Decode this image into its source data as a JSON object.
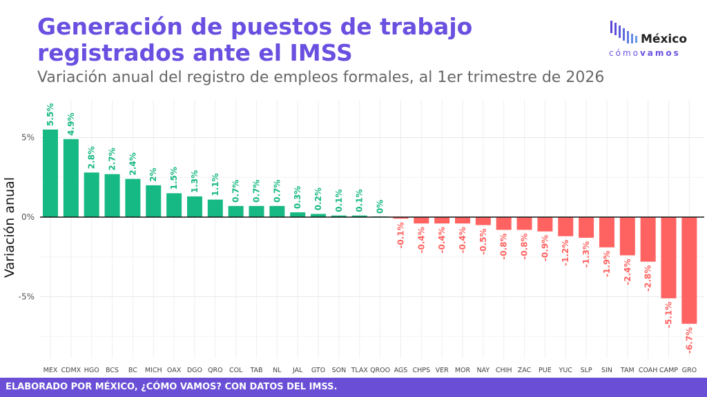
{
  "header": {
    "title_line1": "Generación de puestos de trabajo",
    "title_line2": "registrados ante el IMSS",
    "subtitle": "Variación anual del registro de empleos formales, al 1er trimestre de 2026"
  },
  "logo": {
    "top": "México",
    "bottom_light": "cómo",
    "bottom_bold": "vamos"
  },
  "footer": "ELABORADO POR MÉXICO, ¿CÓMO VAMOS? CON DATOS DEL IMSS.",
  "colors": {
    "positive": "#16b983",
    "negative": "#ff6361",
    "accent": "#6a4fd6"
  },
  "chart_data": {
    "type": "bar",
    "ylabel": "Variación anual",
    "xlabel": "",
    "ylim": [
      -8.5,
      7.5
    ],
    "yticks": [
      {
        "v": 5,
        "label": "5%"
      },
      {
        "v": 0,
        "label": "0%"
      },
      {
        "v": -5,
        "label": "-5%"
      }
    ],
    "grid": true,
    "categories": [
      "MEX",
      "CDMX",
      "HGO",
      "BCS",
      "BC",
      "MICH",
      "OAX",
      "DGO",
      "QRO",
      "COL",
      "TAB",
      "NL",
      "JAL",
      "GTO",
      "SON",
      "TLAX",
      "QROO",
      "AGS",
      "CHPS",
      "VER",
      "MOR",
      "NAY",
      "CHIH",
      "ZAC",
      "PUE",
      "YUC",
      "SLP",
      "SIN",
      "TAM",
      "COAH",
      "CAMP",
      "GRO"
    ],
    "values": [
      5.5,
      4.9,
      2.8,
      2.7,
      2.4,
      2.0,
      1.5,
      1.3,
      1.1,
      0.7,
      0.7,
      0.7,
      0.3,
      0.2,
      0.1,
      0.1,
      0.0,
      -0.1,
      -0.4,
      -0.4,
      -0.4,
      -0.5,
      -0.8,
      -0.8,
      -0.9,
      -1.2,
      -1.3,
      -1.9,
      -2.4,
      -2.8,
      -5.1,
      -6.7
    ],
    "labels": [
      "5.5%",
      "4.9%",
      "2.8%",
      "2.7%",
      "2.4%",
      "2%",
      "1.5%",
      "1.3%",
      "1.1%",
      "0.7%",
      "0.7%",
      "0.7%",
      "0.3%",
      "0.2%",
      "0.1%",
      "0.1%",
      "0%",
      "-0.1%",
      "-0.4%",
      "-0.4%",
      "-0.4%",
      "-0.5%",
      "-0.8%",
      "-0.8%",
      "-0.9%",
      "-1.2%",
      "-1.3%",
      "-1.9%",
      "-2.4%",
      "-2.8%",
      "-5.1%",
      "-6.7%"
    ]
  }
}
